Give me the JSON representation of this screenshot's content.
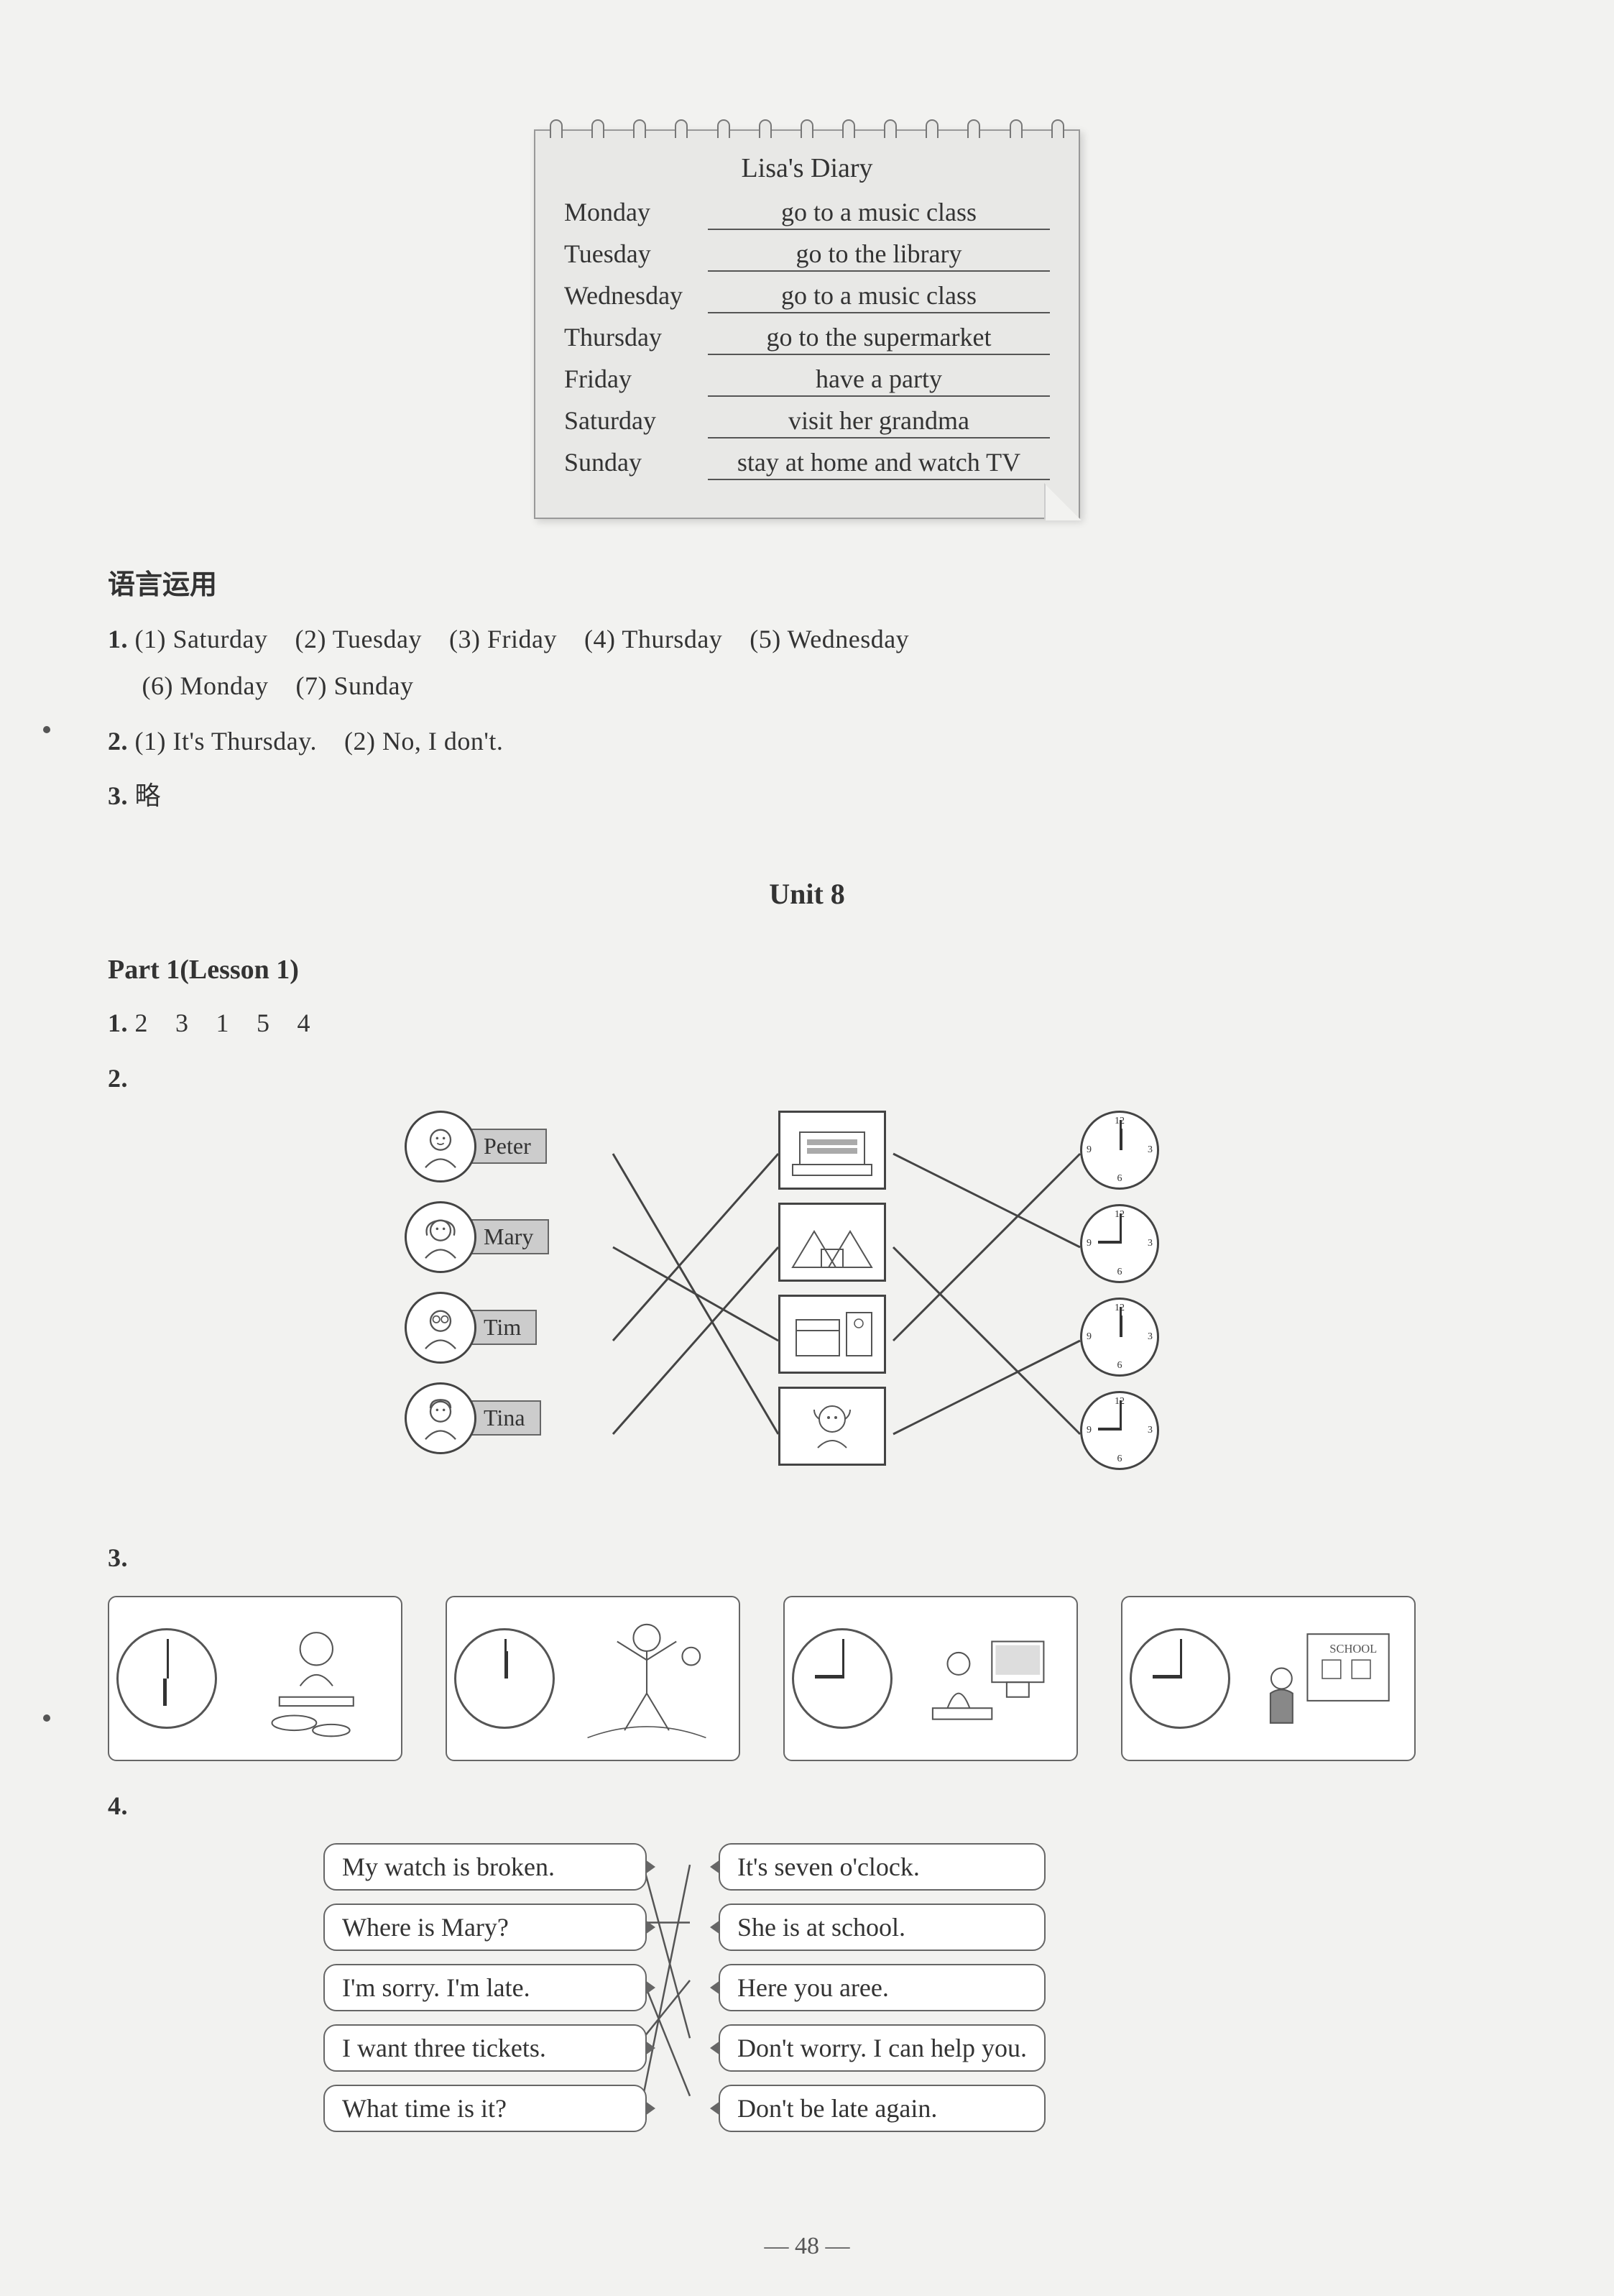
{
  "diary": {
    "title": "Lisa's Diary",
    "rows": [
      {
        "day": "Monday",
        "activity": "go to a music class"
      },
      {
        "day": "Tuesday",
        "activity": "go to the library"
      },
      {
        "day": "Wednesday",
        "activity": "go to a music class"
      },
      {
        "day": "Thursday",
        "activity": "go to the supermarket"
      },
      {
        "day": "Friday",
        "activity": "have a party"
      },
      {
        "day": "Saturday",
        "activity": "visit her grandma"
      },
      {
        "day": "Sunday",
        "activity": "stay at home and watch TV"
      }
    ]
  },
  "section_heading": "语言运用",
  "q1": {
    "num": "1.",
    "items": [
      {
        "marker": "(1)",
        "text": "Saturday"
      },
      {
        "marker": "(2)",
        "text": "Tuesday"
      },
      {
        "marker": "(3)",
        "text": "Friday"
      },
      {
        "marker": "(4)",
        "text": "Thursday"
      },
      {
        "marker": "(5)",
        "text": "Wednesday"
      },
      {
        "marker": "(6)",
        "text": "Monday"
      },
      {
        "marker": "(7)",
        "text": "Sunday"
      }
    ]
  },
  "q2": {
    "num": "2.",
    "items": [
      {
        "marker": "(1)",
        "text": "It's Thursday."
      },
      {
        "marker": "(2)",
        "text": "No, I don't."
      }
    ]
  },
  "q3": {
    "num": "3.",
    "text": "略"
  },
  "unit_heading": "Unit 8",
  "part_heading": "Part 1(Lesson 1)",
  "ex1": {
    "num": "1.",
    "sequence": [
      "2",
      "3",
      "1",
      "5",
      "4"
    ]
  },
  "ex2": {
    "num": "2.",
    "people": [
      {
        "name": "Peter"
      },
      {
        "name": "Mary"
      },
      {
        "name": "Tim"
      },
      {
        "name": "Tina"
      }
    ],
    "clocks": [
      {
        "hour_angle": -90,
        "minute_angle": -90
      },
      {
        "hour_angle": 180,
        "minute_angle": -90
      },
      {
        "hour_angle": -90,
        "minute_angle": -90
      },
      {
        "hour_angle": 180,
        "minute_angle": -90
      }
    ],
    "colors": {
      "line": "#444",
      "border": "#444",
      "label_bg": "#cccccc"
    }
  },
  "ex3": {
    "num": "3.",
    "items": [
      {
        "hour_angle": 90,
        "minute_angle": -90
      },
      {
        "hour_angle": -90,
        "minute_angle": -90
      },
      {
        "hour_angle": 180,
        "minute_angle": -90
      },
      {
        "hour_angle": 180,
        "minute_angle": -90
      }
    ]
  },
  "ex4": {
    "num": "4.",
    "left": [
      "My watch is broken.",
      "Where is Mary?",
      "I'm sorry. I'm late.",
      "I want three tickets.",
      "What time is it?"
    ],
    "right": [
      "It's seven o'clock.",
      "She is at school.",
      "Here you aree.",
      "Don't worry. I can help you.",
      "Don't be late again."
    ]
  },
  "page_number": "— 48 —"
}
